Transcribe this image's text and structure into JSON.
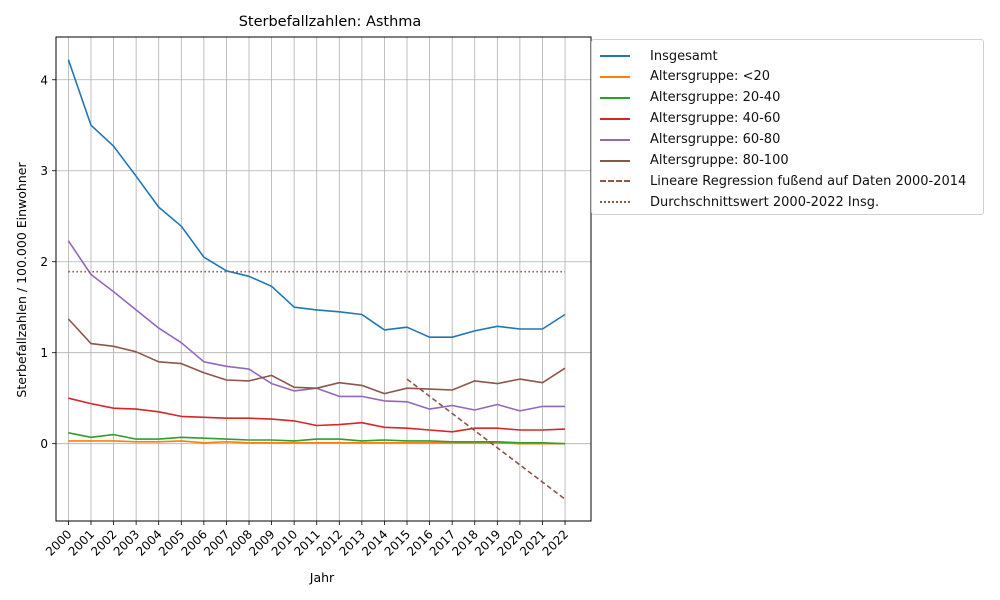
{
  "chart_data": {
    "type": "line",
    "title": "Sterbefallzahlen: Asthma",
    "xlabel": "Jahr",
    "ylabel": "Sterbefallzahlen / 100.000 Einwohner",
    "x": [
      2000,
      2001,
      2002,
      2003,
      2004,
      2005,
      2006,
      2007,
      2008,
      2009,
      2010,
      2011,
      2012,
      2013,
      2014,
      2015,
      2016,
      2017,
      2018,
      2019,
      2020,
      2021,
      2022
    ],
    "yticks": [
      0,
      1,
      2,
      3,
      4
    ],
    "ylim": [
      -0.85,
      4.47
    ],
    "xlim": [
      1999.45,
      2023.15
    ],
    "grid": true,
    "legend_position": "outside upper right",
    "series": [
      {
        "name": "Insgesamt",
        "color": "#1f77b4",
        "style": "solid",
        "values": [
          4.22,
          3.5,
          3.27,
          2.94,
          2.6,
          2.39,
          2.05,
          1.9,
          1.84,
          1.73,
          1.5,
          1.47,
          1.45,
          1.42,
          1.25,
          1.28,
          1.17,
          1.17,
          1.24,
          1.29,
          1.26,
          1.26,
          1.42
        ]
      },
      {
        "name": "Altersgruppe: <20",
        "color": "#ff7f0e",
        "style": "solid",
        "values": [
          0.03,
          0.03,
          0.03,
          0.02,
          0.02,
          0.03,
          0.01,
          0.02,
          0.01,
          0.01,
          0.01,
          0.01,
          0.01,
          0.01,
          0.01,
          0.01,
          0.01,
          0.01,
          0.01,
          0.01,
          0.0,
          0.0,
          0.0
        ]
      },
      {
        "name": "Altersgruppe: 20-40",
        "color": "#2ca02c",
        "style": "solid",
        "values": [
          0.12,
          0.07,
          0.1,
          0.05,
          0.05,
          0.07,
          0.06,
          0.05,
          0.04,
          0.04,
          0.03,
          0.05,
          0.05,
          0.03,
          0.04,
          0.03,
          0.03,
          0.02,
          0.02,
          0.02,
          0.01,
          0.01,
          0.0
        ]
      },
      {
        "name": "Altersgruppe: 40-60",
        "color": "#d62728",
        "style": "solid",
        "values": [
          0.5,
          0.44,
          0.39,
          0.38,
          0.35,
          0.3,
          0.29,
          0.28,
          0.28,
          0.27,
          0.25,
          0.2,
          0.21,
          0.23,
          0.18,
          0.17,
          0.15,
          0.13,
          0.17,
          0.17,
          0.15,
          0.15,
          0.16
        ]
      },
      {
        "name": "Altersgruppe: 60-80",
        "color": "#9467bd",
        "style": "solid",
        "values": [
          2.23,
          1.86,
          1.67,
          1.47,
          1.27,
          1.11,
          0.9,
          0.85,
          0.82,
          0.66,
          0.58,
          0.61,
          0.52,
          0.52,
          0.47,
          0.46,
          0.38,
          0.42,
          0.37,
          0.43,
          0.36,
          0.41,
          0.41
        ]
      },
      {
        "name": "Altersgruppe: 80-100",
        "color": "#8c564b",
        "style": "solid",
        "values": [
          1.37,
          1.1,
          1.07,
          1.01,
          0.9,
          0.88,
          0.78,
          0.7,
          0.69,
          0.75,
          0.62,
          0.61,
          0.67,
          0.64,
          0.55,
          0.61,
          0.6,
          0.59,
          0.69,
          0.66,
          0.71,
          0.67,
          0.83
        ]
      },
      {
        "name": "Lineare Regression fußend auf Daten 2000-2014",
        "color": "#8c564b",
        "style": "dashed",
        "x": [
          2015,
          2022
        ],
        "values": [
          0.71,
          -0.61
        ]
      },
      {
        "name": "Durchschnittswert 2000-2022 Insg.",
        "color": "#8c564b",
        "style": "dotted",
        "x": [
          2000,
          2022
        ],
        "values": [
          1.89,
          1.89
        ]
      }
    ]
  }
}
